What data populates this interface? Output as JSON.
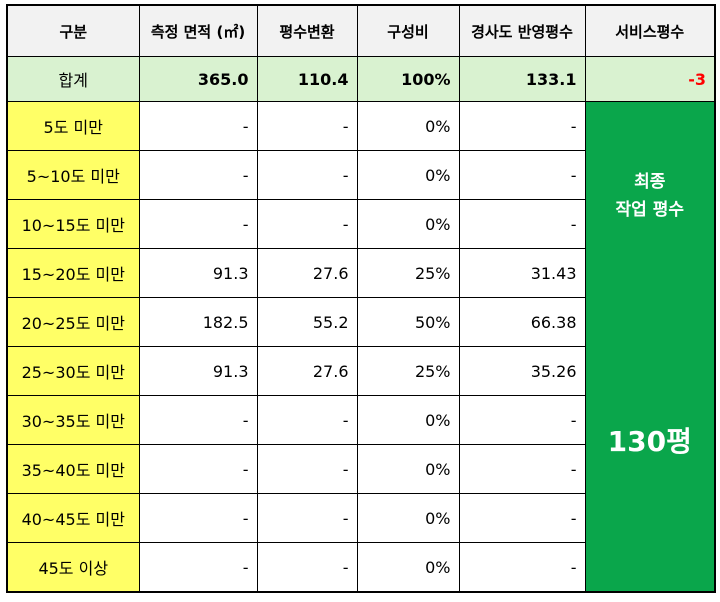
{
  "headers": [
    "구분",
    "측정 면적 (㎡)",
    "평수변환",
    "구성비",
    "경사도 반영평수",
    "서비스평수"
  ],
  "total": {
    "label": "합계",
    "area": "365.0",
    "pyeong": "110.4",
    "ratio": "100%",
    "slope_pyeong": "133.1",
    "service": "-3"
  },
  "rows": [
    {
      "label": "5도 미만",
      "area": "-",
      "pyeong": "-",
      "ratio": "0%",
      "slope_pyeong": "-"
    },
    {
      "label": "5~10도 미만",
      "area": "-",
      "pyeong": "-",
      "ratio": "0%",
      "slope_pyeong": "-"
    },
    {
      "label": "10~15도 미만",
      "area": "-",
      "pyeong": "-",
      "ratio": "0%",
      "slope_pyeong": "-"
    },
    {
      "label": "15~20도 미만",
      "area": "91.3",
      "pyeong": "27.6",
      "ratio": "25%",
      "slope_pyeong": "31.43"
    },
    {
      "label": "20~25도 미만",
      "area": "182.5",
      "pyeong": "55.2",
      "ratio": "50%",
      "slope_pyeong": "66.38"
    },
    {
      "label": "25~30도 미만",
      "area": "91.3",
      "pyeong": "27.6",
      "ratio": "25%",
      "slope_pyeong": "35.26"
    },
    {
      "label": "30~35도 미만",
      "area": "-",
      "pyeong": "-",
      "ratio": "0%",
      "slope_pyeong": "-"
    },
    {
      "label": "35~40도 미만",
      "area": "-",
      "pyeong": "-",
      "ratio": "0%",
      "slope_pyeong": "-"
    },
    {
      "label": "40~45도 미만",
      "area": "-",
      "pyeong": "-",
      "ratio": "0%",
      "slope_pyeong": "-"
    },
    {
      "label": "45도 이상",
      "area": "-",
      "pyeong": "-",
      "ratio": "0%",
      "slope_pyeong": "-"
    }
  ],
  "service": {
    "label_line1": "최종",
    "label_line2": "작업 평수",
    "value": "130평"
  },
  "colors": {
    "header_bg": "#f2f2f2",
    "total_bg": "#d9f2d0",
    "category_bg": "#ffff66",
    "service_bg": "#0aa64b",
    "negative": "#ff0000"
  }
}
